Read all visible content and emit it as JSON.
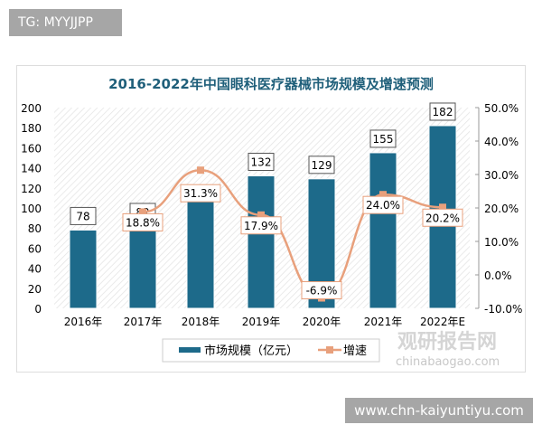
{
  "banner": {
    "text": "TG: MYYJJPP"
  },
  "footer": {
    "watermark": "www.chn-kaiyuntiyu.com"
  },
  "logo": {
    "text": "观研报告网",
    "sub": "chinabaogao.com"
  },
  "colors": {
    "bar": "#1d6a8a",
    "line": "#e8a07c",
    "title": "#1f5f7a"
  },
  "chart_data": {
    "type": "bar+line",
    "title": "2016-2022年中国眼科医疗器械市场规模及增速预测",
    "categories": [
      "2016年",
      "2017年",
      "2018年",
      "2019年",
      "2020年",
      "2021年",
      "2022年E"
    ],
    "series": [
      {
        "name": "市场规模（亿元）",
        "type": "bar",
        "axis": "left",
        "values": [
          78,
          82,
          113,
          132,
          129,
          155,
          182
        ],
        "labels": [
          "78",
          "82",
          null,
          "132",
          "129",
          "155",
          "182"
        ]
      },
      {
        "name": "增速",
        "type": "line",
        "axis": "right",
        "values": [
          null,
          18.8,
          31.3,
          17.9,
          -6.9,
          24.0,
          20.2
        ],
        "labels": [
          null,
          "18.8%",
          "31.3%",
          "17.9%",
          "-6.9%",
          "24.0%",
          "20.2%"
        ]
      }
    ],
    "y_left": {
      "range": [
        0,
        200
      ],
      "ticks": [
        "0",
        "20",
        "40",
        "60",
        "80",
        "100",
        "120",
        "140",
        "160",
        "180",
        "200"
      ]
    },
    "y_right": {
      "range": [
        -10,
        50
      ],
      "ticks": [
        "-10.0%",
        "0.0%",
        "10.0%",
        "20.0%",
        "30.0%",
        "40.0%",
        "50.0%"
      ]
    },
    "legend": "bottom",
    "grid": false
  }
}
